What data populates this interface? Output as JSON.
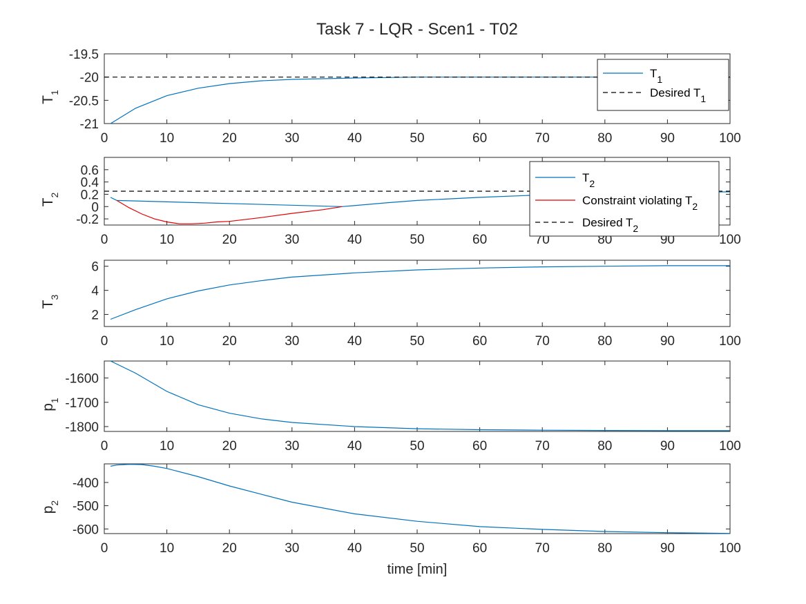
{
  "title": "Task 7 - LQR - Scen1 - T02",
  "xlabel": "time [min]",
  "colors": {
    "blue": "#0072bd",
    "red": "#e00000",
    "black": "#000000",
    "axis": "#262626"
  },
  "chart_data": [
    {
      "type": "line",
      "ylabel": "T_1",
      "xlim": [
        0,
        100
      ],
      "ylim": [
        -21,
        -19.5
      ],
      "xticks": [
        0,
        10,
        20,
        30,
        40,
        50,
        60,
        70,
        80,
        90,
        100
      ],
      "yticks": [
        -21,
        -20.5,
        -20,
        -19.5
      ],
      "ytick_labels": [
        "-21",
        "-20.5",
        "-20",
        "-19.5"
      ],
      "legend_position": "top-right",
      "series": [
        {
          "name": "T_1",
          "style": "solid",
          "color": "blue",
          "x": [
            1,
            5,
            10,
            15,
            20,
            25,
            30,
            40,
            50,
            60,
            70,
            80,
            90,
            100
          ],
          "y": [
            -21.0,
            -20.67,
            -20.4,
            -20.24,
            -20.14,
            -20.08,
            -20.05,
            -20.02,
            -20.0,
            -20.0,
            -20.0,
            -20.0,
            -20.0,
            -20.0
          ]
        },
        {
          "name": "Desired T_1",
          "style": "dashed",
          "color": "black",
          "x": [
            0,
            100
          ],
          "y": [
            -20,
            -20
          ]
        }
      ]
    },
    {
      "type": "line",
      "ylabel": "T_2",
      "xlim": [
        0,
        100
      ],
      "ylim": [
        -0.3,
        0.8
      ],
      "xticks": [
        0,
        10,
        20,
        30,
        40,
        50,
        60,
        70,
        80,
        90,
        100
      ],
      "yticks": [
        -0.2,
        0,
        0.2,
        0.4,
        0.6
      ],
      "ytick_labels": [
        "-0.2",
        "0",
        "0.2",
        "0.4",
        "0.6"
      ],
      "legend_position": "top-right",
      "series": [
        {
          "name": "T_2",
          "style": "solid",
          "color": "blue",
          "x": [
            1,
            2,
            38,
            45,
            50,
            60,
            70,
            80,
            90,
            100
          ],
          "y": [
            0.15,
            0.1,
            0.0,
            0.06,
            0.1,
            0.15,
            0.19,
            0.21,
            0.23,
            0.24
          ]
        },
        {
          "name": "Constraint violating T_2",
          "style": "solid",
          "color": "red",
          "x": [
            2,
            4,
            6,
            8,
            10,
            12,
            14,
            16,
            18,
            20,
            25,
            30,
            35,
            38
          ],
          "y": [
            0.1,
            -0.02,
            -0.12,
            -0.2,
            -0.25,
            -0.28,
            -0.28,
            -0.27,
            -0.25,
            -0.24,
            -0.18,
            -0.11,
            -0.05,
            0.0
          ]
        },
        {
          "name": "Desired T_2",
          "style": "dashed",
          "color": "black",
          "x": [
            0,
            100
          ],
          "y": [
            0.25,
            0.25
          ]
        }
      ]
    },
    {
      "type": "line",
      "ylabel": "T_3",
      "xlim": [
        0,
        100
      ],
      "ylim": [
        1,
        6.5
      ],
      "xticks": [
        0,
        10,
        20,
        30,
        40,
        50,
        60,
        70,
        80,
        90,
        100
      ],
      "yticks": [
        2,
        4,
        6
      ],
      "ytick_labels": [
        "2",
        "4",
        "6"
      ],
      "series": [
        {
          "name": "T_3",
          "style": "solid",
          "color": "blue",
          "x": [
            1,
            5,
            10,
            15,
            20,
            25,
            30,
            40,
            50,
            60,
            70,
            80,
            90,
            100
          ],
          "y": [
            1.6,
            2.4,
            3.3,
            3.95,
            4.45,
            4.8,
            5.1,
            5.45,
            5.7,
            5.85,
            5.95,
            6.0,
            6.05,
            6.05
          ]
        }
      ]
    },
    {
      "type": "line",
      "ylabel": "p_1",
      "xlim": [
        0,
        100
      ],
      "ylim": [
        -1820,
        -1530
      ],
      "xticks": [
        0,
        10,
        20,
        30,
        40,
        50,
        60,
        70,
        80,
        90,
        100
      ],
      "yticks": [
        -1800,
        -1700,
        -1600
      ],
      "ytick_labels": [
        "-1800",
        "-1700",
        "-1600"
      ],
      "series": [
        {
          "name": "p_1",
          "style": "solid",
          "color": "blue",
          "x": [
            1,
            5,
            10,
            15,
            20,
            25,
            30,
            40,
            50,
            60,
            70,
            80,
            90,
            100
          ],
          "y": [
            -1530,
            -1580,
            -1655,
            -1710,
            -1745,
            -1768,
            -1783,
            -1800,
            -1809,
            -1813,
            -1815,
            -1816,
            -1817,
            -1817
          ]
        }
      ]
    },
    {
      "type": "line",
      "ylabel": "p_2",
      "xlim": [
        0,
        100
      ],
      "ylim": [
        -620,
        -320
      ],
      "xticks": [
        0,
        10,
        20,
        30,
        40,
        50,
        60,
        70,
        80,
        90,
        100
      ],
      "yticks": [
        -600,
        -500,
        -400
      ],
      "ytick_labels": [
        "-600",
        "-500",
        "-400"
      ],
      "series": [
        {
          "name": "p_2",
          "style": "solid",
          "color": "blue",
          "x": [
            1,
            2,
            4,
            6,
            8,
            10,
            15,
            20,
            25,
            30,
            40,
            50,
            60,
            70,
            80,
            90,
            100
          ],
          "y": [
            -330,
            -325,
            -322,
            -323,
            -330,
            -340,
            -375,
            -415,
            -450,
            -485,
            -535,
            -567,
            -590,
            -602,
            -611,
            -616,
            -619
          ]
        }
      ]
    }
  ]
}
